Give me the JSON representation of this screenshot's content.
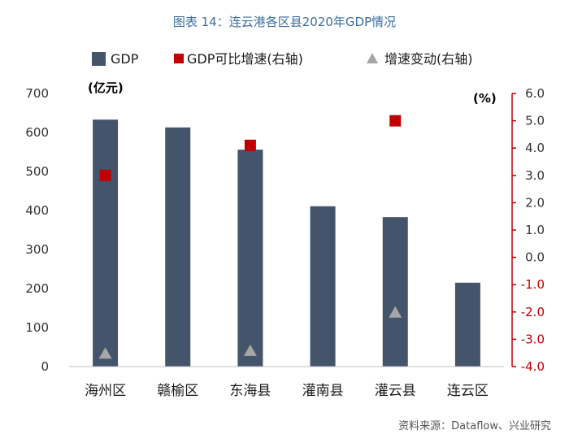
{
  "chart_data": {
    "type": "bar",
    "title": "图表 14：连云港各区县2020年GDP情况",
    "categories": [
      "海州区",
      "赣榆区",
      "东海县",
      "灌南县",
      "灌云县",
      "连云区"
    ],
    "series": [
      {
        "name": "GDP",
        "type": "bar",
        "axis": "left",
        "color": "#44546a",
        "values": [
          633,
          613,
          556,
          411,
          383,
          215
        ]
      },
      {
        "name": "GDP可比增速(右轴)",
        "type": "square-marker",
        "axis": "right",
        "color": "#c00000",
        "values": [
          3.0,
          null,
          4.1,
          null,
          5.0,
          null
        ]
      },
      {
        "name": "增速变动(右轴)",
        "type": "triangle-marker",
        "axis": "right",
        "color": "#a6a6a6",
        "values": [
          -3.5,
          null,
          -3.4,
          null,
          -2.0,
          null
        ]
      }
    ],
    "left_axis": {
      "unit": "(亿元)",
      "ylim": [
        0,
        700
      ],
      "ticks": [
        "0",
        "100",
        "200",
        "300",
        "400",
        "500",
        "600",
        "700"
      ]
    },
    "right_axis": {
      "unit": "(%)",
      "ylim": [
        -4.0,
        6.0
      ],
      "ticks": [
        "-4.0",
        "-3.0",
        "-2.0",
        "-1.0",
        "0.0",
        "1.0",
        "2.0",
        "3.0",
        "4.0",
        "5.0",
        "6.0"
      ],
      "negative_color": "#c00000",
      "positive_color": "#333333"
    },
    "legend_position": "top",
    "grid": false
  },
  "source": "资料来源：Dataflow、兴业研究"
}
